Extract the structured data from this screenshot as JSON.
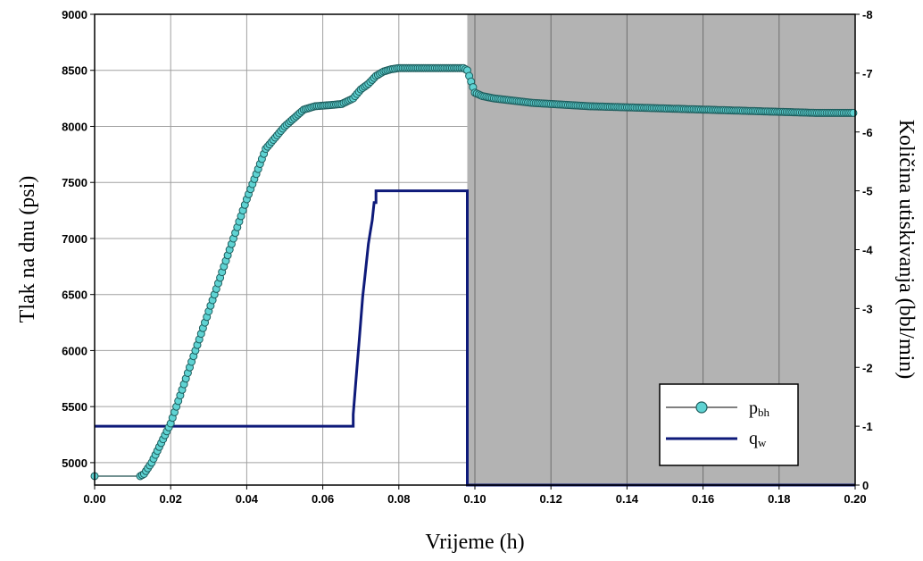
{
  "chart_data": {
    "type": "line",
    "title": "",
    "xlabel": "Vrijeme (h)",
    "ylabel_left": "Tlak na dnu (psi)",
    "ylabel_right": "Količina utiskivanja (bbl/min)",
    "xlim": [
      0.0,
      0.2
    ],
    "ylim_left": [
      4800,
      9000
    ],
    "ylim_right": [
      0,
      -8
    ],
    "grid": true,
    "x_ticks": [
      "0.00",
      "0.02",
      "0.04",
      "0.06",
      "0.08",
      "0.10",
      "0.12",
      "0.14",
      "0.16",
      "0.18",
      "0.20"
    ],
    "y_left_ticks": [
      "5000",
      "5500",
      "6000",
      "6500",
      "7000",
      "7500",
      "8000",
      "8500",
      "9000"
    ],
    "y_right_ticks": [
      "0",
      "-1",
      "-2",
      "-3",
      "-4",
      "-5",
      "-6",
      "-7",
      "-8"
    ],
    "shaded_region": {
      "x_from": 0.098,
      "x_to": 0.2,
      "color": "#b3b3b3"
    },
    "legend": {
      "position": "bottom-right",
      "items": [
        {
          "main": "p",
          "sub": "bh"
        },
        {
          "main": "q",
          "sub": "w"
        }
      ]
    },
    "series": [
      {
        "name": "pbh",
        "axis": "left",
        "color": "#3a9b9b",
        "marker": "circle",
        "x": [
          0.0,
          0.012,
          0.013,
          0.015,
          0.02,
          0.025,
          0.03,
          0.035,
          0.04,
          0.045,
          0.05,
          0.055,
          0.058,
          0.062,
          0.065,
          0.068,
          0.07,
          0.072,
          0.074,
          0.076,
          0.078,
          0.08,
          0.085,
          0.09,
          0.095,
          0.097,
          0.098,
          0.099,
          0.1,
          0.102,
          0.105,
          0.11,
          0.115,
          0.12,
          0.13,
          0.14,
          0.15,
          0.16,
          0.17,
          0.18,
          0.19,
          0.2
        ],
        "y": [
          4880,
          4880,
          4900,
          5000,
          5350,
          5850,
          6350,
          6850,
          7350,
          7800,
          8000,
          8150,
          8180,
          8190,
          8200,
          8250,
          8330,
          8380,
          8450,
          8490,
          8510,
          8520,
          8520,
          8520,
          8520,
          8520,
          8500,
          8400,
          8300,
          8270,
          8250,
          8230,
          8210,
          8200,
          8180,
          8170,
          8160,
          8150,
          8140,
          8130,
          8120,
          8120
        ]
      },
      {
        "name": "qw",
        "axis": "right",
        "color": "#0e1a7a",
        "x": [
          0.0,
          0.068,
          0.068,
          0.0685,
          0.069,
          0.0695,
          0.07,
          0.0705,
          0.071,
          0.0715,
          0.072,
          0.0725,
          0.073,
          0.0735,
          0.074,
          0.074,
          0.098,
          0.098,
          0.2
        ],
        "y": [
          -1.0,
          -1.0,
          -1.2,
          -1.6,
          -2.0,
          -2.4,
          -2.8,
          -3.2,
          -3.5,
          -3.8,
          -4.1,
          -4.3,
          -4.5,
          -4.8,
          -4.8,
          -5.0,
          -5.0,
          0.0,
          0.0
        ]
      }
    ]
  }
}
